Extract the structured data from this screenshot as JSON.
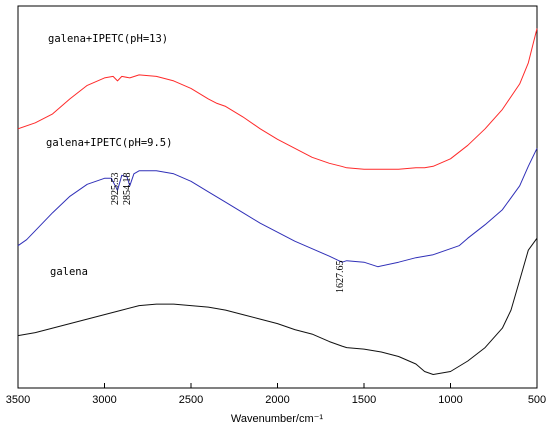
{
  "chart_data": {
    "type": "line",
    "xlabel": "Wavenumber/cm⁻¹",
    "ylabel": "",
    "xlim": [
      3500,
      500
    ],
    "x_reversed": true,
    "x_ticks": [
      3500,
      3000,
      2500,
      2000,
      1500,
      1000,
      500
    ],
    "y_ticks_shown": false,
    "grid": false,
    "series": [
      {
        "name": "galena+IPETC(pH=13)",
        "color": "#ff2a2a",
        "points": [
          [
            3500,
            0.18
          ],
          [
            3400,
            0.22
          ],
          [
            3300,
            0.28
          ],
          [
            3200,
            0.38
          ],
          [
            3100,
            0.47
          ],
          [
            3000,
            0.52
          ],
          [
            2950,
            0.53
          ],
          [
            2925,
            0.5
          ],
          [
            2900,
            0.53
          ],
          [
            2854,
            0.52
          ],
          [
            2800,
            0.54
          ],
          [
            2700,
            0.53
          ],
          [
            2600,
            0.5
          ],
          [
            2500,
            0.45
          ],
          [
            2400,
            0.38
          ],
          [
            2350,
            0.35
          ],
          [
            2300,
            0.33
          ],
          [
            2200,
            0.26
          ],
          [
            2100,
            0.18
          ],
          [
            2000,
            0.11
          ],
          [
            1900,
            0.05
          ],
          [
            1800,
            -0.01
          ],
          [
            1700,
            -0.05
          ],
          [
            1630,
            -0.07
          ],
          [
            1600,
            -0.08
          ],
          [
            1500,
            -0.09
          ],
          [
            1400,
            -0.09
          ],
          [
            1300,
            -0.09
          ],
          [
            1200,
            -0.08
          ],
          [
            1150,
            -0.08
          ],
          [
            1100,
            -0.07
          ],
          [
            1000,
            -0.02
          ],
          [
            900,
            0.07
          ],
          [
            800,
            0.18
          ],
          [
            700,
            0.31
          ],
          [
            600,
            0.48
          ],
          [
            550,
            0.62
          ],
          [
            500,
            0.85
          ]
        ]
      },
      {
        "name": "galena+IPETC(pH=9.5)",
        "color": "#3030b8",
        "points": [
          [
            3500,
            -0.6
          ],
          [
            3450,
            -0.56
          ],
          [
            3400,
            -0.5
          ],
          [
            3300,
            -0.38
          ],
          [
            3200,
            -0.27
          ],
          [
            3100,
            -0.19
          ],
          [
            3000,
            -0.15
          ],
          [
            2960,
            -0.15
          ],
          [
            2925,
            -0.23
          ],
          [
            2900,
            -0.13
          ],
          [
            2870,
            -0.14
          ],
          [
            2854,
            -0.2
          ],
          [
            2830,
            -0.12
          ],
          [
            2800,
            -0.1
          ],
          [
            2700,
            -0.1
          ],
          [
            2600,
            -0.12
          ],
          [
            2500,
            -0.17
          ],
          [
            2400,
            -0.24
          ],
          [
            2300,
            -0.31
          ],
          [
            2200,
            -0.38
          ],
          [
            2100,
            -0.45
          ],
          [
            2000,
            -0.51
          ],
          [
            1900,
            -0.57
          ],
          [
            1800,
            -0.62
          ],
          [
            1700,
            -0.67
          ],
          [
            1627,
            -0.71
          ],
          [
            1600,
            -0.7
          ],
          [
            1500,
            -0.71
          ],
          [
            1420,
            -0.74
          ],
          [
            1300,
            -0.71
          ],
          [
            1200,
            -0.68
          ],
          [
            1100,
            -0.66
          ],
          [
            1000,
            -0.62
          ],
          [
            950,
            -0.6
          ],
          [
            900,
            -0.55
          ],
          [
            800,
            -0.46
          ],
          [
            700,
            -0.36
          ],
          [
            600,
            -0.2
          ],
          [
            550,
            -0.07
          ],
          [
            500,
            0.05
          ]
        ]
      },
      {
        "name": "galena",
        "color": "#111111",
        "points": [
          [
            3500,
            -1.2
          ],
          [
            3400,
            -1.18
          ],
          [
            3300,
            -1.15
          ],
          [
            3200,
            -1.12
          ],
          [
            3100,
            -1.09
          ],
          [
            3000,
            -1.06
          ],
          [
            2900,
            -1.03
          ],
          [
            2800,
            -1.0
          ],
          [
            2700,
            -0.99
          ],
          [
            2600,
            -0.99
          ],
          [
            2500,
            -1.0
          ],
          [
            2400,
            -1.01
          ],
          [
            2350,
            -1.02
          ],
          [
            2300,
            -1.03
          ],
          [
            2200,
            -1.06
          ],
          [
            2100,
            -1.09
          ],
          [
            2000,
            -1.12
          ],
          [
            1900,
            -1.16
          ],
          [
            1800,
            -1.19
          ],
          [
            1700,
            -1.24
          ],
          [
            1627,
            -1.27
          ],
          [
            1600,
            -1.28
          ],
          [
            1500,
            -1.29
          ],
          [
            1400,
            -1.31
          ],
          [
            1300,
            -1.34
          ],
          [
            1200,
            -1.39
          ],
          [
            1150,
            -1.44
          ],
          [
            1100,
            -1.46
          ],
          [
            1000,
            -1.44
          ],
          [
            900,
            -1.37
          ],
          [
            800,
            -1.28
          ],
          [
            700,
            -1.15
          ],
          [
            650,
            -1.03
          ],
          [
            600,
            -0.83
          ],
          [
            550,
            -0.63
          ],
          [
            500,
            -0.55
          ]
        ]
      }
    ],
    "annotations": [
      {
        "text": "2925.53",
        "x": 2925.53
      },
      {
        "text": "2854.18",
        "x": 2854.18
      },
      {
        "text": "1627.65",
        "x": 1627.65
      }
    ]
  }
}
